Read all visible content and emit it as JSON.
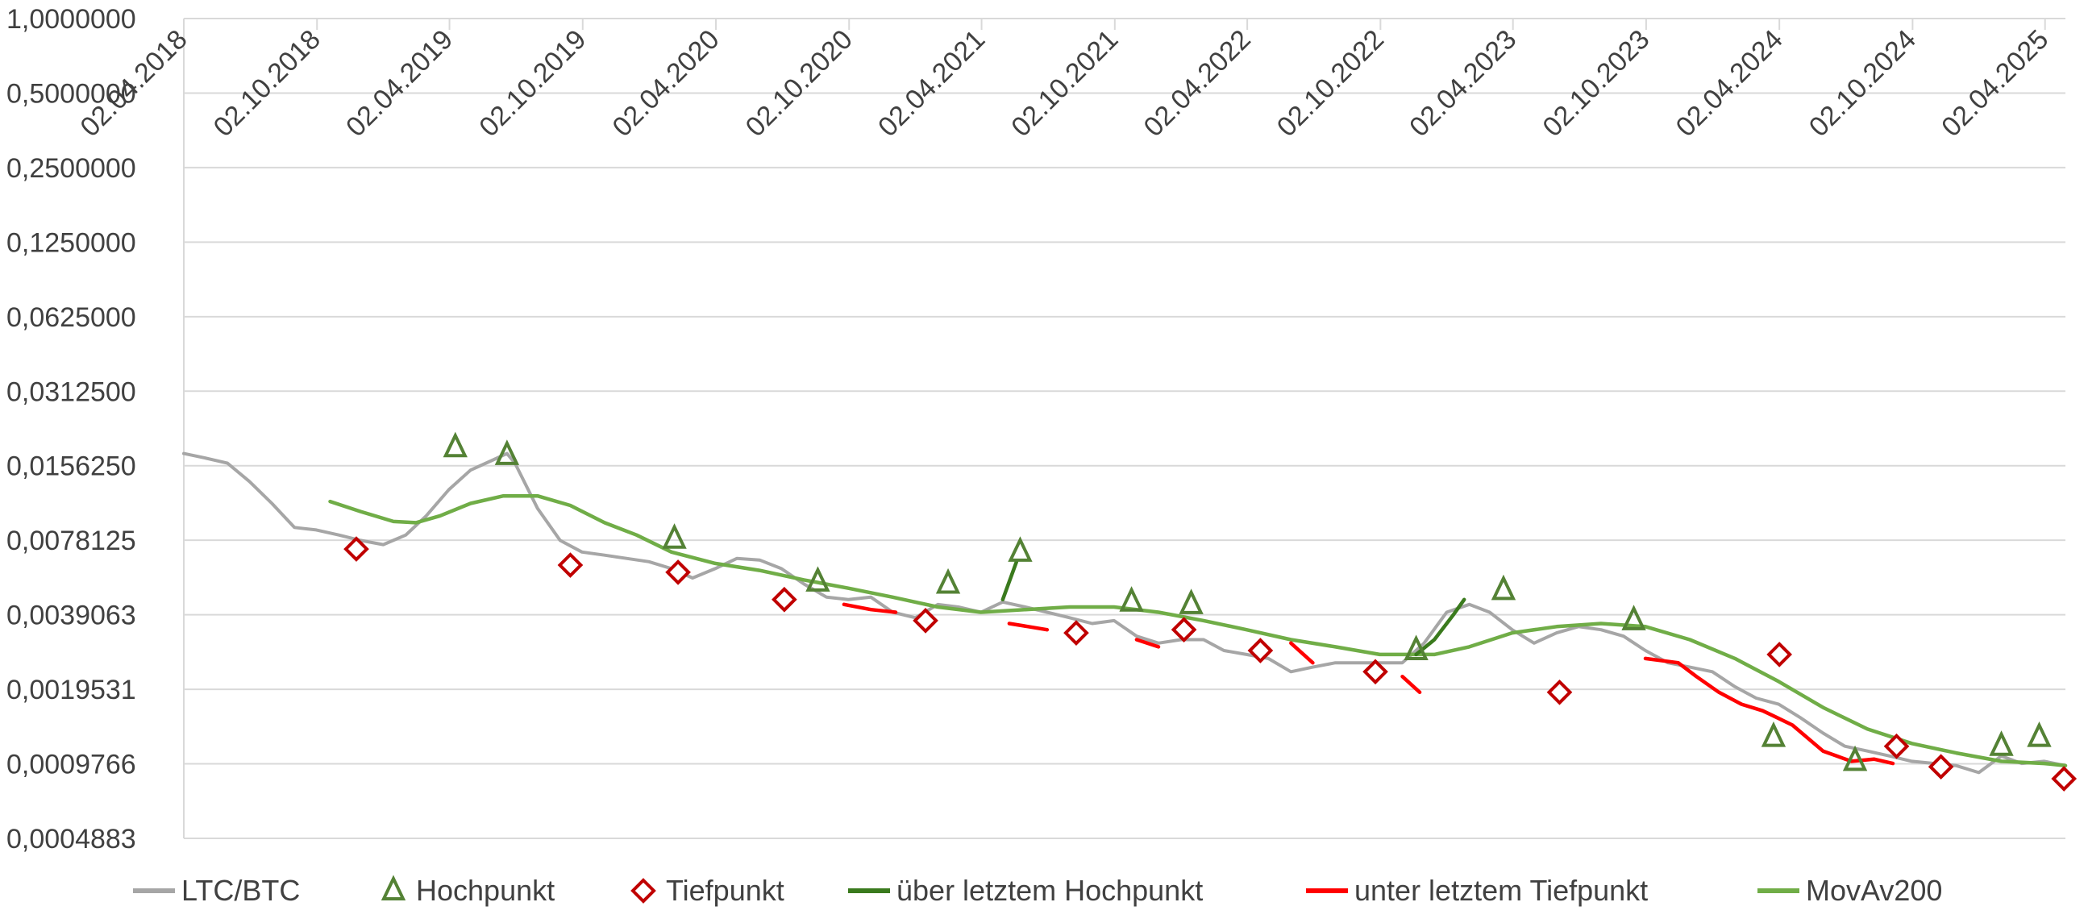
{
  "chart_data": {
    "type": "line",
    "yscale": "log2",
    "ylim": [
      0.00048828,
      1.0
    ],
    "y_tick_labels": [
      "1,0000000",
      "0,5000000",
      "0,2500000",
      "0,1250000",
      "0,0625000",
      "0,0312500",
      "0,0156250",
      "0,0078125",
      "0,0039063",
      "0,0019531",
      "0,0009766",
      "0,0004883"
    ],
    "y_tick_values": [
      1.0,
      0.5,
      0.25,
      0.125,
      0.0625,
      0.03125,
      0.015625,
      0.0078125,
      0.00390625,
      0.001953125,
      0.0009765625,
      0.00048828125
    ],
    "x_range": [
      "2018-04-02",
      "2025-04-30"
    ],
    "x_tick_labels": [
      "02.04.2018",
      "02.10.2018",
      "02.04.2019",
      "02.10.2019",
      "02.04.2020",
      "02.10.2020",
      "02.04.2021",
      "02.10.2021",
      "02.04.2022",
      "02.10.2022",
      "02.04.2023",
      "02.10.2023",
      "02.04.2024",
      "02.10.2024",
      "02.04.2025"
    ],
    "x_tick_dates": [
      "2018-04-02",
      "2018-10-02",
      "2019-04-02",
      "2019-10-02",
      "2020-04-02",
      "2020-10-02",
      "2021-04-02",
      "2021-10-02",
      "2022-04-02",
      "2022-10-02",
      "2023-04-02",
      "2023-10-02",
      "2024-04-02",
      "2024-10-02",
      "2025-04-02"
    ],
    "grid": true,
    "legend_position": "bottom",
    "series": [
      {
        "name": "LTC/BTC",
        "type": "line",
        "color": "#a6a6a6",
        "x": [
          "2018-04-02",
          "2018-05-01",
          "2018-06-01",
          "2018-07-01",
          "2018-08-01",
          "2018-09-01",
          "2018-10-01",
          "2018-11-01",
          "2018-12-01",
          "2019-01-01",
          "2019-02-01",
          "2019-03-01",
          "2019-04-01",
          "2019-05-01",
          "2019-06-01",
          "2019-06-20",
          "2019-07-01",
          "2019-08-01",
          "2019-09-01",
          "2019-10-01",
          "2019-11-01",
          "2019-12-01",
          "2020-01-01",
          "2020-02-01",
          "2020-03-01",
          "2020-04-01",
          "2020-05-01",
          "2020-06-01",
          "2020-07-01",
          "2020-08-01",
          "2020-09-01",
          "2020-10-01",
          "2020-11-01",
          "2020-12-01",
          "2021-01-01",
          "2021-02-01",
          "2021-03-01",
          "2021-04-01",
          "2021-05-01",
          "2021-06-01",
          "2021-07-01",
          "2021-08-01",
          "2021-09-01",
          "2021-10-01",
          "2021-11-01",
          "2021-12-01",
          "2022-01-01",
          "2022-02-01",
          "2022-03-01",
          "2022-04-01",
          "2022-05-01",
          "2022-06-01",
          "2022-07-01",
          "2022-08-01",
          "2022-09-01",
          "2022-10-01",
          "2022-11-01",
          "2022-12-01",
          "2023-01-01",
          "2023-02-01",
          "2023-03-01",
          "2023-04-01",
          "2023-05-01",
          "2023-06-01",
          "2023-07-01",
          "2023-08-01",
          "2023-09-01",
          "2023-10-01",
          "2023-11-01",
          "2023-12-01",
          "2024-01-01",
          "2024-02-01",
          "2024-03-01",
          "2024-04-01",
          "2024-05-01",
          "2024-06-01",
          "2024-07-01",
          "2024-08-01",
          "2024-09-01",
          "2024-10-01",
          "2024-11-01",
          "2024-12-01",
          "2025-01-01",
          "2025-02-01",
          "2025-03-01",
          "2025-04-01",
          "2025-04-30"
        ],
        "values": [
          0.0175,
          0.0168,
          0.016,
          0.0135,
          0.011,
          0.0088,
          0.0086,
          0.0082,
          0.0078,
          0.0075,
          0.0082,
          0.0098,
          0.0125,
          0.015,
          0.0165,
          0.0175,
          0.016,
          0.0105,
          0.0078,
          0.007,
          0.0068,
          0.0066,
          0.0064,
          0.006,
          0.0055,
          0.006,
          0.0066,
          0.0065,
          0.006,
          0.0052,
          0.0046,
          0.0045,
          0.0046,
          0.004,
          0.0038,
          0.0043,
          0.0042,
          0.004,
          0.0044,
          0.0042,
          0.004,
          0.0038,
          0.0036,
          0.0037,
          0.0032,
          0.003,
          0.0031,
          0.0031,
          0.0028,
          0.0027,
          0.0026,
          0.0023,
          0.0024,
          0.0025,
          0.0025,
          0.0025,
          0.0025,
          0.003,
          0.004,
          0.0043,
          0.004,
          0.0034,
          0.003,
          0.0033,
          0.0035,
          0.0034,
          0.0032,
          0.0028,
          0.0025,
          0.0024,
          0.0023,
          0.002,
          0.0018,
          0.0017,
          0.0015,
          0.0013,
          0.00115,
          0.0011,
          0.00105,
          0.001,
          0.00098,
          0.00096,
          0.0009,
          0.00105,
          0.00098,
          0.001,
          0.00096
        ]
      },
      {
        "name": "Hochpunkt",
        "type": "marker",
        "marker": "triangle",
        "color": "#548235",
        "x": [
          "2019-04-10",
          "2019-06-20",
          "2020-02-05",
          "2020-08-20",
          "2021-02-15",
          "2021-05-25",
          "2021-10-25",
          "2022-01-15",
          "2022-11-20",
          "2023-03-20",
          "2023-09-15",
          "2024-03-25",
          "2024-07-15",
          "2025-02-01",
          "2025-03-25"
        ],
        "values": [
          0.0185,
          0.0172,
          0.0079,
          0.0053,
          0.0052,
          0.007,
          0.0044,
          0.0043,
          0.0028,
          0.0049,
          0.0037,
          0.00125,
          0.001,
          0.00115,
          0.00125
        ]
      },
      {
        "name": "Tiefpunkt",
        "type": "marker",
        "marker": "diamond",
        "color": "#c00000",
        "x": [
          "2018-11-25",
          "2019-09-15",
          "2020-02-10",
          "2020-07-05",
          "2021-01-15",
          "2021-08-10",
          "2022-01-05",
          "2022-04-20",
          "2022-09-25",
          "2023-06-05",
          "2024-04-02",
          "2024-09-10",
          "2024-11-10",
          "2025-04-28"
        ],
        "values": [
          0.0072,
          0.0062,
          0.0058,
          0.0045,
          0.0037,
          0.0033,
          0.0034,
          0.0028,
          0.0023,
          0.0019,
          0.0027,
          0.00115,
          0.00095,
          0.00085
        ]
      },
      {
        "name": "über letztem Hochpunkt",
        "type": "line",
        "color": "#3a7a1d",
        "x": [
          "2021-05-01",
          "2021-05-20",
          "2022-11-20",
          "2022-12-15",
          "2023-01-10",
          "2023-01-25"
        ],
        "values": [
          0.0045,
          0.0064,
          0.0027,
          0.0031,
          0.0039,
          0.0045
        ]
      },
      {
        "name": "unter letztem Tiefpunkt",
        "type": "line",
        "color": "#ff0000",
        "x": [
          "2020-09-25",
          "2020-11-01",
          "2020-12-05",
          "2021-05-10",
          "2021-06-05",
          "2021-07-01",
          "2021-11-01",
          "2021-12-01",
          "2022-06-01",
          "2022-07-01",
          "2022-11-01",
          "2022-11-25",
          "2023-10-01",
          "2023-11-15",
          "2023-12-10",
          "2024-01-10",
          "2024-02-10",
          "2024-03-10",
          "2024-03-30",
          "2024-04-20",
          "2024-06-01",
          "2024-06-20",
          "2024-07-10",
          "2024-08-10",
          "2024-09-05"
        ],
        "values": [
          0.0043,
          0.0041,
          0.004,
          0.0036,
          0.0035,
          0.0034,
          0.0031,
          0.0029,
          0.003,
          0.0025,
          0.0022,
          0.0019,
          0.0026,
          0.0025,
          0.0022,
          0.0019,
          0.0017,
          0.0016,
          0.0015,
          0.0014,
          0.0011,
          0.00105,
          0.001,
          0.00102,
          0.00098
        ]
      },
      {
        "name": "MovAv200",
        "type": "line",
        "color": "#70ad47",
        "x": [
          "2018-10-20",
          "2018-12-01",
          "2019-01-15",
          "2019-02-15",
          "2019-03-20",
          "2019-05-01",
          "2019-06-15",
          "2019-08-01",
          "2019-09-15",
          "2019-11-01",
          "2019-12-15",
          "2020-02-01",
          "2020-04-01",
          "2020-06-01",
          "2020-08-01",
          "2020-10-01",
          "2020-12-01",
          "2021-02-01",
          "2021-04-01",
          "2021-06-01",
          "2021-08-01",
          "2021-10-01",
          "2021-12-01",
          "2022-02-01",
          "2022-04-01",
          "2022-06-01",
          "2022-08-01",
          "2022-10-01",
          "2022-12-15",
          "2023-02-01",
          "2023-04-01",
          "2023-06-01",
          "2023-08-01",
          "2023-10-01",
          "2023-12-01",
          "2024-02-01",
          "2024-04-01",
          "2024-06-01",
          "2024-08-01",
          "2024-10-01",
          "2024-12-01",
          "2025-02-01",
          "2025-04-01",
          "2025-04-30"
        ],
        "values": [
          0.0112,
          0.0102,
          0.0093,
          0.0092,
          0.0098,
          0.011,
          0.0118,
          0.0118,
          0.0108,
          0.0092,
          0.0082,
          0.007,
          0.0063,
          0.0059,
          0.0054,
          0.005,
          0.0046,
          0.0042,
          0.004,
          0.0041,
          0.0042,
          0.0042,
          0.004,
          0.0037,
          0.0034,
          0.0031,
          0.0029,
          0.0027,
          0.0027,
          0.0029,
          0.0033,
          0.0035,
          0.0036,
          0.0035,
          0.0031,
          0.0026,
          0.0021,
          0.00165,
          0.00135,
          0.00118,
          0.00108,
          0.001,
          0.00098,
          0.00096
        ]
      }
    ]
  }
}
